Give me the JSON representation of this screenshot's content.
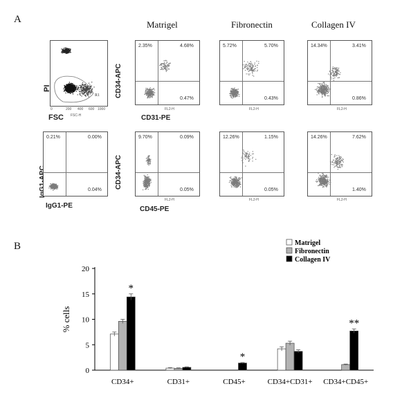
{
  "panelA": {
    "letter": "A",
    "columns": [
      "Matrigel",
      "Fibronectin",
      "Collagen IV"
    ],
    "gate": {
      "ylabel": "PI",
      "xlabel": "FSC",
      "small_xlabel": "FSC-H",
      "gate_label": "R1",
      "xticks": [
        "0",
        "200",
        "400",
        "600",
        "800",
        "1000"
      ],
      "yticks": [
        "10⁰",
        "10¹",
        "10²",
        "10³",
        "10⁴"
      ]
    },
    "isotype": {
      "ylabel": "IgG1-APC",
      "xlabel": "IgG1-PE",
      "quadrants": {
        "ul": "0.21%",
        "ur": "0.00%",
        "lr": "0.04%"
      }
    },
    "row1": {
      "ylabel": "CD34-APC",
      "xlabel": "CD31-PE",
      "small_xlabel": "FL2-H",
      "small_ylabel": "FL4-H",
      "quadrants": [
        {
          "ul": "2.35%",
          "ur": "4.68%",
          "lr": "0.47%"
        },
        {
          "ul": "5.72%",
          "ur": "5.70%",
          "lr": "0.43%"
        },
        {
          "ul": "14.34%",
          "ur": "3.41%",
          "lr": "0.86%"
        }
      ]
    },
    "row2": {
      "ylabel": "CD34-APC",
      "xlabel": "CD45-PE",
      "small_xlabel": "FL2-H",
      "small_ylabel": "FL4-H",
      "quadrants": [
        {
          "ul": "9.70%",
          "ur": "0.09%",
          "lr": "0.05%"
        },
        {
          "ul": "12.26%",
          "ur": "1.15%",
          "lr": "0.05%"
        },
        {
          "ul": "14.26%",
          "ur": "7.62%",
          "lr": "1.40%"
        }
      ]
    },
    "log_ticks": [
      "10⁰",
      "10¹",
      "10²",
      "10³",
      "10⁴"
    ]
  },
  "panelB": {
    "letter": "B",
    "chart_data": {
      "type": "bar",
      "title": "",
      "xlabel": "",
      "ylabel": "% cells",
      "ylim": [
        0,
        20
      ],
      "yticks": [
        0,
        5,
        10,
        15,
        20
      ],
      "categories": [
        "CD34+",
        "CD31+",
        "CD45+",
        "CD34+CD31+",
        "CD34+CD45+"
      ],
      "series": [
        {
          "name": "Matrigel",
          "color": "#ffffff",
          "values": [
            7.1,
            0.4,
            0.0,
            4.2,
            0.0
          ],
          "errors": [
            0.4,
            0.1,
            0,
            0.4,
            0
          ]
        },
        {
          "name": "Fibronectin",
          "color": "#b3b3b3",
          "values": [
            9.6,
            0.35,
            0.0,
            5.3,
            1.1
          ],
          "errors": [
            0.4,
            0.1,
            0,
            0.4,
            0.1
          ]
        },
        {
          "name": "Collagen IV",
          "color": "#000000",
          "values": [
            14.4,
            0.55,
            1.4,
            3.7,
            7.7
          ],
          "errors": [
            0.6,
            0.1,
            0.1,
            0.3,
            0.4
          ]
        }
      ],
      "annotations": [
        {
          "category": "CD34+",
          "text": "*"
        },
        {
          "category": "CD45+",
          "text": "*"
        },
        {
          "category": "CD34+CD45+",
          "text": "**"
        }
      ],
      "legend": "top-right"
    }
  }
}
